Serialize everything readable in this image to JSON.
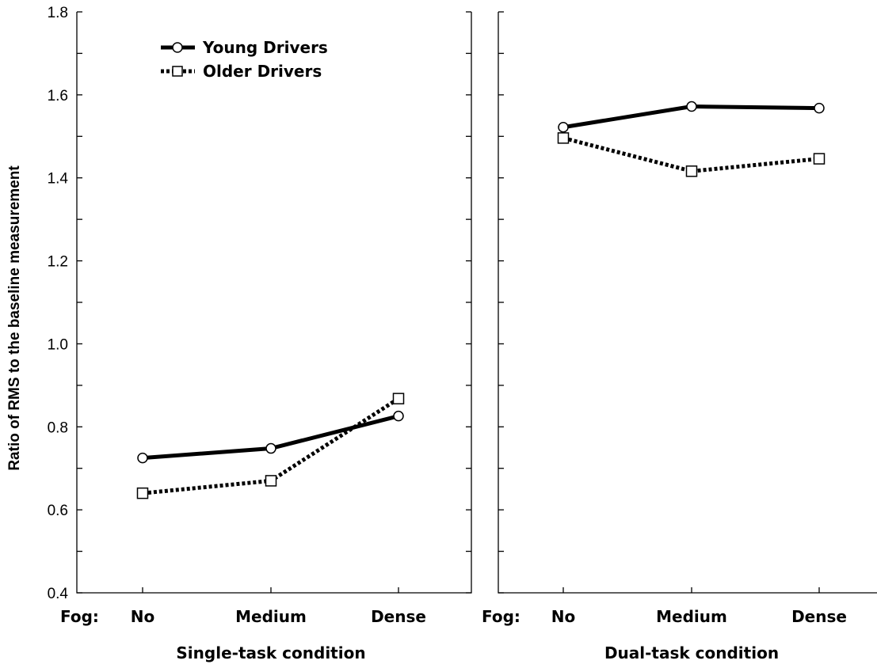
{
  "chart_data": [
    {
      "type": "line",
      "title": "Single-task condition",
      "xlabel_prefix": "Fog:",
      "ylabel": "Ratio of RMS to the baseline measurement",
      "categories": [
        "No",
        "Medium",
        "Dense"
      ],
      "ylim": [
        0.4,
        1.8
      ],
      "yticks": [
        "0.4",
        "0.6",
        "0.8",
        "1.0",
        "1.2",
        "1.4",
        "1.6",
        "1.8"
      ],
      "series": [
        {
          "name": "Young Drivers",
          "marker": "circle",
          "line": "solid",
          "values": [
            0.725,
            0.748,
            0.826
          ]
        },
        {
          "name": "Older Drivers",
          "marker": "square",
          "line": "dotted",
          "values": [
            0.64,
            0.67,
            0.868
          ]
        }
      ],
      "legend": "top-left",
      "grid": false
    },
    {
      "type": "line",
      "title": "Dual-task condition",
      "xlabel_prefix": "Fog:",
      "categories": [
        "No",
        "Medium",
        "Dense"
      ],
      "ylim": [
        0.4,
        1.8
      ],
      "series": [
        {
          "name": "Young Drivers",
          "marker": "circle",
          "line": "solid",
          "values": [
            1.522,
            1.572,
            1.568
          ]
        },
        {
          "name": "Older Drivers",
          "marker": "square",
          "line": "dotted",
          "values": [
            1.496,
            1.416,
            1.446
          ]
        }
      ],
      "grid": false
    }
  ]
}
